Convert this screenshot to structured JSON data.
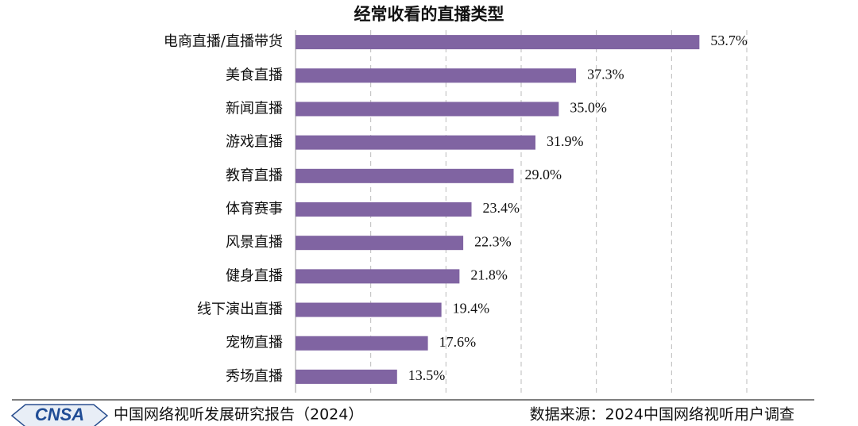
{
  "chart_data": {
    "type": "bar",
    "orientation": "horizontal",
    "title": "经常收看的直播类型",
    "categories": [
      "电商直播/直播带货",
      "美食直播",
      "新闻直播",
      "游戏直播",
      "教育直播",
      "体育赛事",
      "风景直播",
      "健身直播",
      "线下演出直播",
      "宠物直播",
      "秀场直播"
    ],
    "values": [
      53.7,
      37.3,
      35.0,
      31.9,
      29.0,
      23.4,
      22.3,
      21.8,
      19.4,
      17.6,
      13.5
    ],
    "value_labels": [
      "53.7%",
      "37.3%",
      "35.0%",
      "31.9%",
      "29.0%",
      "23.4%",
      "22.3%",
      "21.8%",
      "19.4%",
      "17.6%",
      "13.5%"
    ],
    "color": "#8064a2",
    "xlim": [
      0,
      60
    ],
    "xticks": [
      10,
      20,
      30,
      40,
      50,
      60
    ],
    "grid": true,
    "logo": "CNSA",
    "report": "中国网络视听发展研究报告（2024）",
    "source": "数据来源：2024中国网络视听用户调查"
  }
}
